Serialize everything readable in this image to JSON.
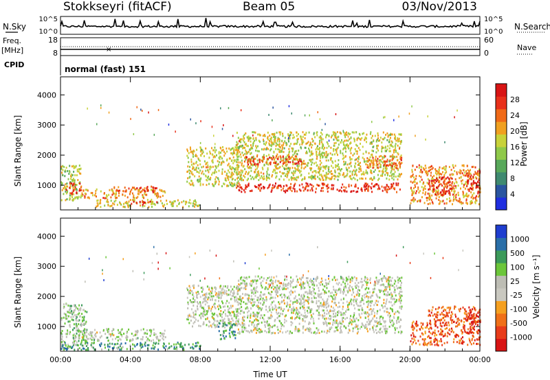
{
  "header": {
    "site": "Stokkseyri (fitACF)",
    "beam": "Beam 05",
    "date": "03/Nov/2013"
  },
  "summary": {
    "nsky_label": "N.Sky",
    "nsky_ticks": [
      "10^5",
      "10^0"
    ],
    "nsearch_label": "N.Search",
    "nsearch_ticks": [
      "10^5",
      "10^0"
    ],
    "freq_label_1": "Freq.",
    "freq_label_2": "[MHz]",
    "freq_ticks": [
      "18",
      "8"
    ],
    "nave_ticks": [
      "60",
      "0"
    ],
    "nave_label": "Nave",
    "cpid_label": "CPID",
    "cpid_value": "normal (fast) 151"
  },
  "chart_data": [
    {
      "type": "heatmap",
      "name": "power",
      "xlabel": "Time UT",
      "ylabel": "Slant Range [km]",
      "x_ticks": [
        "00:00",
        "04:00",
        "08:00",
        "12:00",
        "16:00",
        "20:00",
        "00:00"
      ],
      "xlim_hours": [
        0,
        24
      ],
      "y_ticks": [
        1000,
        2000,
        3000,
        4000
      ],
      "ylim": [
        180,
        4600
      ],
      "colorbar": {
        "label": "Power [dB]",
        "ticks": [
          "4",
          "8",
          "12",
          "16",
          "20",
          "24",
          "28"
        ],
        "colors": [
          "#1f2ee0",
          "#2a55a0",
          "#3f8a70",
          "#58a85a",
          "#8fc94a",
          "#c8d23a",
          "#f0a020",
          "#f06a18",
          "#e8301a",
          "#d81414"
        ]
      },
      "regions": [
        {
          "t": [
            0.0,
            1.2
          ],
          "r": [
            500,
            1700
          ],
          "v": 0.5
        },
        {
          "t": [
            0.3,
            1.2
          ],
          "r": [
            700,
            1100
          ],
          "v": 0.85
        },
        {
          "t": [
            1.2,
            6.0
          ],
          "r": [
            600,
            900
          ],
          "v": 0.7
        },
        {
          "t": [
            3.0,
            5.5
          ],
          "r": [
            800,
            1000
          ],
          "v": 0.85
        },
        {
          "t": [
            2.0,
            8.0
          ],
          "r": [
            300,
            550
          ],
          "v": 0.55
        },
        {
          "t": [
            4.0,
            5.5
          ],
          "r": [
            380,
            500
          ],
          "v": 0.9
        },
        {
          "t": [
            7.2,
            10.2
          ],
          "r": [
            1000,
            2300
          ],
          "v": 0.55
        },
        {
          "t": [
            10.0,
            19.5
          ],
          "r": [
            1200,
            2800
          ],
          "v": 0.55
        },
        {
          "t": [
            10.5,
            14.0
          ],
          "r": [
            1700,
            2000
          ],
          "v": 0.88
        },
        {
          "t": [
            10.0,
            19.5
          ],
          "r": [
            800,
            1100
          ],
          "v": 0.92
        },
        {
          "t": [
            17.5,
            19.5
          ],
          "r": [
            1600,
            2000
          ],
          "v": 0.8
        },
        {
          "t": [
            20.0,
            24.0
          ],
          "r": [
            400,
            1700
          ],
          "v": 0.7
        },
        {
          "t": [
            21.0,
            22.5
          ],
          "r": [
            700,
            1300
          ],
          "v": 0.92
        },
        {
          "t": [
            23.2,
            24.0
          ],
          "r": [
            800,
            1500
          ],
          "v": 0.9
        }
      ]
    },
    {
      "type": "heatmap",
      "name": "velocity",
      "xlabel": "Time UT",
      "ylabel": "Slant Range [km]",
      "x_ticks": [
        "00:00",
        "04:00",
        "08:00",
        "12:00",
        "16:00",
        "20:00",
        "00:00"
      ],
      "xlim_hours": [
        0,
        24
      ],
      "y_ticks": [
        1000,
        2000,
        3000,
        4000
      ],
      "ylim": [
        180,
        4600
      ],
      "colorbar": {
        "label": "Velocity [m s⁻¹]",
        "ticks": [
          "1000",
          "500",
          "100",
          "25",
          "-25",
          "-100",
          "-500",
          "-1000"
        ],
        "colors": [
          "#1f3ecf",
          "#2a6fa8",
          "#3c9a5a",
          "#6cc63a",
          "#bdbdb4",
          "#c9c8c0",
          "#f5a020",
          "#f07018",
          "#e83c1a",
          "#d81414"
        ]
      },
      "regions": [
        {
          "t": [
            0.0,
            1.5
          ],
          "r": [
            300,
            1800
          ],
          "v": 0.4
        },
        {
          "t": [
            1.0,
            6.0
          ],
          "r": [
            550,
            950
          ],
          "v": 0.45
        },
        {
          "t": [
            0.0,
            8.0
          ],
          "r": [
            250,
            500
          ],
          "v": 0.25
        },
        {
          "t": [
            7.2,
            10.2
          ],
          "r": [
            1000,
            2400
          ],
          "v": 0.47
        },
        {
          "t": [
            10.0,
            19.5
          ],
          "r": [
            800,
            2700
          ],
          "v": 0.47
        },
        {
          "t": [
            9.0,
            10.0
          ],
          "r": [
            600,
            1200
          ],
          "v": 0.25
        },
        {
          "t": [
            20.0,
            21.0
          ],
          "r": [
            400,
            1200
          ],
          "v": 0.8
        },
        {
          "t": [
            21.0,
            24.0
          ],
          "r": [
            400,
            1700
          ],
          "v": 0.85
        },
        {
          "t": [
            23.2,
            24.0
          ],
          "r": [
            800,
            1500
          ],
          "v": 0.95
        }
      ]
    }
  ]
}
